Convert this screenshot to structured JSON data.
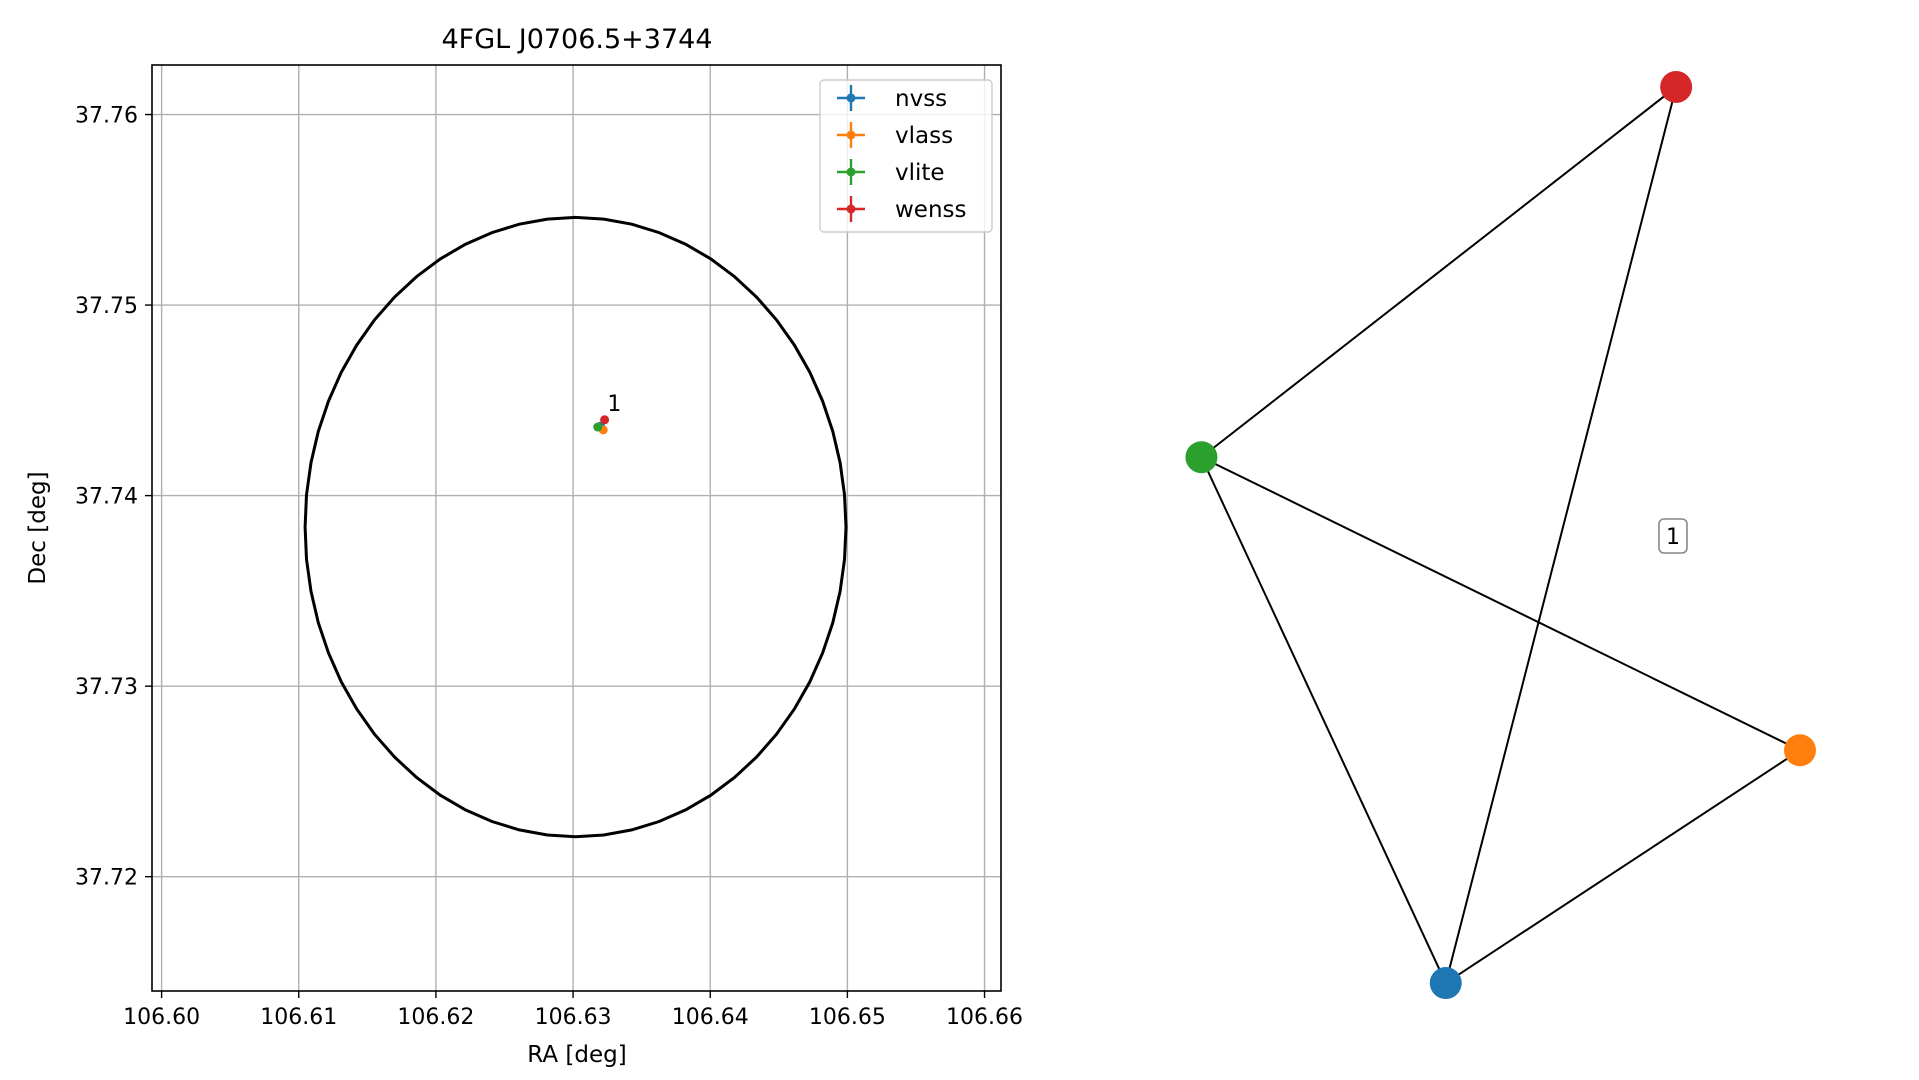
{
  "chart_data": [
    {
      "type": "scatter",
      "title": "4FGL J0706.5+3744",
      "xlabel": "RA [deg]",
      "ylabel": "Dec [deg]",
      "xlim": [
        106.5993,
        106.6612
      ],
      "ylim": [
        37.714,
        37.7626
      ],
      "xticks": [
        "106.60",
        "106.61",
        "106.62",
        "106.63",
        "106.64",
        "106.65",
        "106.66"
      ],
      "yticks": [
        "37.72",
        "37.73",
        "37.74",
        "37.75",
        "37.76"
      ],
      "grid": true,
      "legend_position": "upper-right",
      "series": [
        {
          "name": "nvss",
          "color": "#1f77b4",
          "x": 106.632,
          "y": 37.74365
        },
        {
          "name": "vlass",
          "color": "#ff7f0e",
          "x": 106.6322,
          "y": 37.74345
        },
        {
          "name": "vlite",
          "color": "#2ca02c",
          "x": 106.6318,
          "y": 37.7436
        },
        {
          "name": "wenss",
          "color": "#d62728",
          "x": 106.6323,
          "y": 37.74398
        }
      ],
      "annotations": [
        {
          "text": "1",
          "x": 106.6325,
          "y": 37.74445
        }
      ],
      "ellipse": {
        "center": [
          106.63018,
          37.73835
        ],
        "semi_axis_ra": 0.01972,
        "semi_axis_dec": 0.01625
      }
    },
    {
      "type": "network",
      "nodes": [
        {
          "id": "nvss",
          "color": "#1f77b4",
          "pos": [
            0.262,
            -0.87
          ]
        },
        {
          "id": "vlass",
          "color": "#ff7f0e",
          "pos": [
            1.0,
            -0.418
          ]
        },
        {
          "id": "vlite",
          "color": "#2ca02c",
          "pos": [
            -0.247,
            0.151
          ]
        },
        {
          "id": "wenss",
          "color": "#d62728",
          "pos": [
            0.742,
            0.87
          ]
        }
      ],
      "edges": [
        {
          "source": "vlite",
          "target": "wenss",
          "label": ""
        },
        {
          "source": "vlite",
          "target": "nvss",
          "label": ""
        },
        {
          "source": "vlite",
          "target": "vlass",
          "label": ""
        },
        {
          "source": "nvss",
          "target": "wenss",
          "label": "1"
        },
        {
          "source": "nvss",
          "target": "vlass",
          "label": ""
        }
      ]
    }
  ]
}
